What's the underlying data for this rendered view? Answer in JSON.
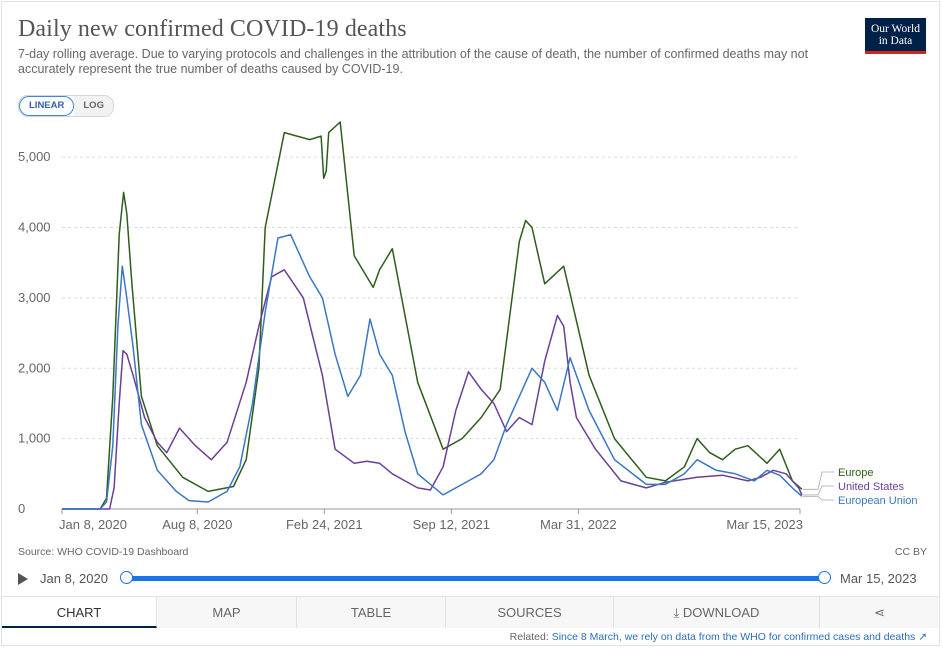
{
  "header": {
    "title": "Daily new confirmed COVID-19 deaths",
    "subtitle": "7-day rolling average. Due to varying protocols and challenges in the attribution of the cause of death, the number of confirmed deaths may not accurately represent the true number of deaths caused by COVID-19.",
    "logo_line1": "Our World",
    "logo_line2": "in Data"
  },
  "scale": {
    "linear": "LINEAR",
    "log": "LOG"
  },
  "footer": {
    "source": "Source: WHO COVID-19 Dashboard",
    "license": "CC BY",
    "related_label": "Related:",
    "related_link": "Since 8 March, we rely on data from the WHO for confirmed cases and deaths ↗"
  },
  "timeline": {
    "start": "Jan 8, 2020",
    "end": "Mar 15, 2023"
  },
  "tabs": [
    "CHART",
    "MAP",
    "TABLE",
    "SOURCES",
    "⤓ DOWNLOAD",
    "⋖"
  ],
  "colors": {
    "europe": "#2d5e1c",
    "united_states": "#6b3f96",
    "european_union": "#3a77c4"
  },
  "chart_data": {
    "type": "line",
    "title": "Daily new confirmed COVID-19 deaths",
    "ylabel": "",
    "xlabel": "",
    "ylim": [
      0,
      5500
    ],
    "yticks": [
      0,
      1000,
      2000,
      3000,
      4000,
      5000
    ],
    "ytick_labels": [
      "0",
      "1,000",
      "2,000",
      "3,000",
      "4,000",
      "5,000"
    ],
    "xlim": [
      "2020-01-08",
      "2023-03-15"
    ],
    "xticks": [
      "Jan 8, 2020",
      "Aug 8, 2020",
      "Feb 24, 2021",
      "Sep 12, 2021",
      "Mar 31, 2022",
      "Mar 15, 2023"
    ],
    "legend": [
      "Europe",
      "United States",
      "European Union"
    ],
    "legend_position": "right",
    "x_unit": "days since Jan 8, 2020",
    "series": [
      {
        "name": "Europe",
        "color": "#2d5e1c",
        "x": [
          0,
          60,
          70,
          80,
          90,
          97,
          102,
          110,
          125,
          150,
          190,
          230,
          270,
          290,
          310,
          320,
          350,
          390,
          408,
          412,
          416,
          420,
          438,
          460,
          490,
          500,
          520,
          560,
          600,
          630,
          660,
          690,
          700,
          720,
          730,
          740,
          760,
          790,
          830,
          870,
          920,
          950,
          980,
          1000,
          1020,
          1040,
          1060,
          1080,
          1110,
          1130,
          1150,
          1165
        ],
        "y": [
          0,
          0,
          150,
          1600,
          3900,
          4500,
          4200,
          3200,
          1600,
          900,
          450,
          250,
          320,
          700,
          2000,
          4000,
          5350,
          5250,
          5300,
          4700,
          4800,
          5350,
          5500,
          3600,
          3150,
          3400,
          3700,
          1800,
          850,
          1000,
          1300,
          1700,
          2400,
          3800,
          4100,
          4000,
          3200,
          3450,
          1900,
          1000,
          450,
          400,
          600,
          1000,
          800,
          700,
          850,
          900,
          650,
          850,
          400,
          280
        ]
      },
      {
        "name": "United States",
        "color": "#6b3f96",
        "x": [
          0,
          75,
          82,
          90,
          96,
          102,
          112,
          130,
          150,
          165,
          185,
          210,
          235,
          260,
          290,
          310,
          330,
          350,
          365,
          380,
          410,
          430,
          460,
          480,
          500,
          520,
          540,
          560,
          580,
          600,
          620,
          640,
          660,
          680,
          700,
          720,
          740,
          760,
          780,
          790,
          800,
          810,
          840,
          880,
          920,
          950,
          1000,
          1040,
          1080,
          1100,
          1120,
          1140,
          1160,
          1165
        ],
        "y": [
          0,
          0,
          300,
          1500,
          2250,
          2200,
          1900,
          1300,
          950,
          800,
          1150,
          900,
          700,
          950,
          1800,
          2600,
          3300,
          3400,
          3200,
          3000,
          1900,
          850,
          650,
          680,
          650,
          500,
          400,
          300,
          270,
          600,
          1400,
          1950,
          1700,
          1500,
          1100,
          1300,
          1200,
          2100,
          2750,
          2600,
          1800,
          1300,
          850,
          400,
          300,
          380,
          450,
          480,
          400,
          450,
          550,
          500,
          300,
          200
        ]
      },
      {
        "name": "European Union",
        "color": "#3a77c4",
        "x": [
          0,
          60,
          70,
          80,
          88,
          95,
          102,
          112,
          125,
          150,
          180,
          200,
          230,
          260,
          280,
          300,
          320,
          340,
          360,
          390,
          410,
          430,
          450,
          470,
          485,
          500,
          520,
          540,
          560,
          600,
          640,
          660,
          680,
          700,
          720,
          740,
          760,
          780,
          800,
          830,
          870,
          920,
          950,
          980,
          1000,
          1030,
          1060,
          1090,
          1110,
          1130,
          1150,
          1165
        ],
        "y": [
          0,
          0,
          100,
          900,
          2600,
          3450,
          3000,
          2300,
          1200,
          550,
          250,
          120,
          100,
          250,
          600,
          1500,
          2800,
          3850,
          3900,
          3300,
          3000,
          2200,
          1600,
          1900,
          2700,
          2200,
          1900,
          1100,
          500,
          200,
          400,
          500,
          700,
          1200,
          1600,
          2000,
          1800,
          1400,
          2150,
          1400,
          700,
          350,
          350,
          500,
          700,
          550,
          500,
          400,
          550,
          480,
          300,
          180
        ]
      }
    ]
  }
}
